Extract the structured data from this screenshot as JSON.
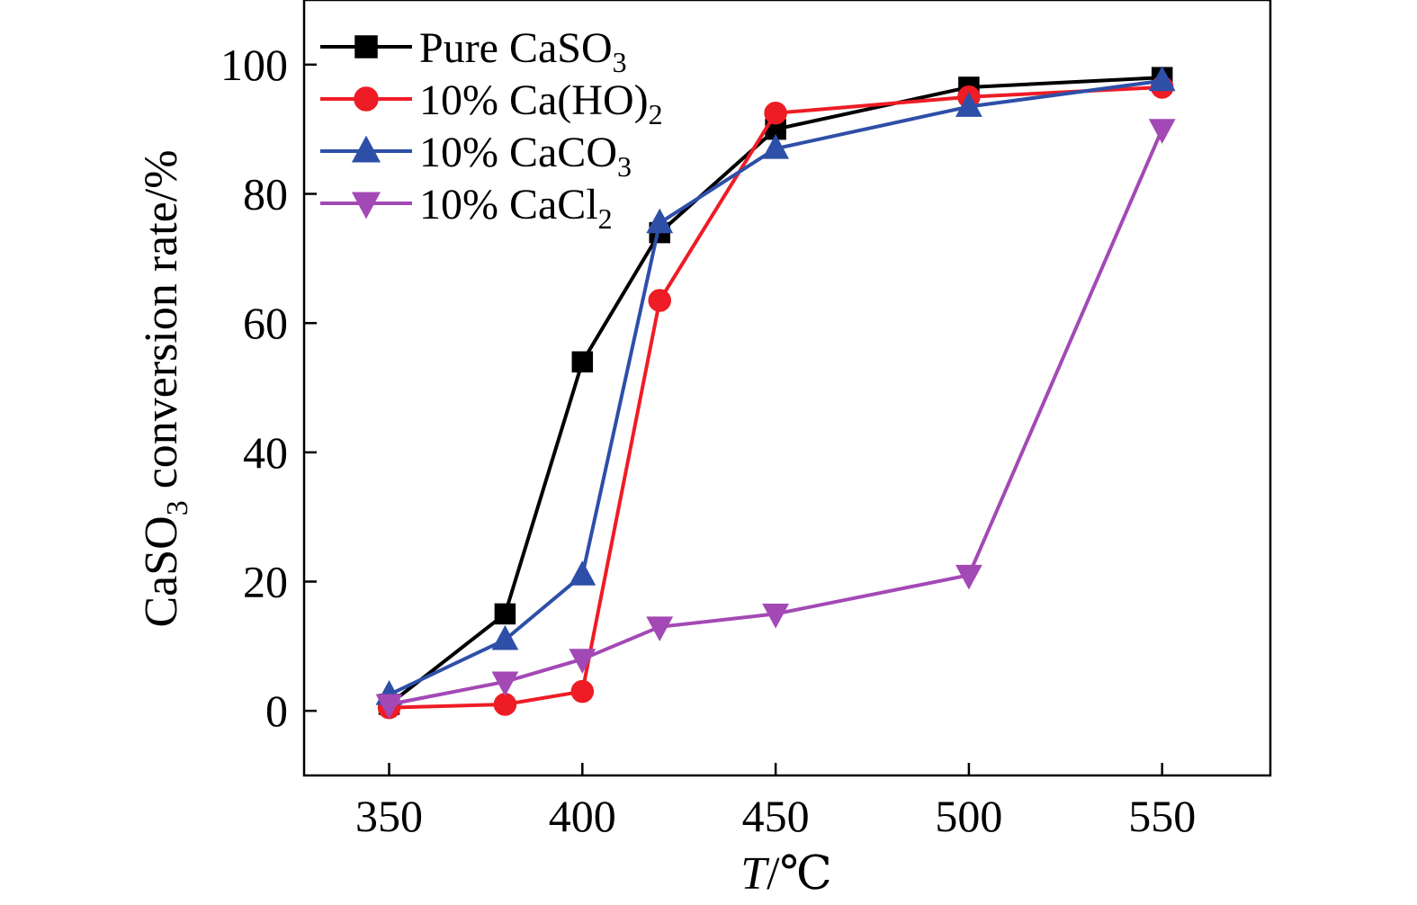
{
  "chart_data": {
    "type": "line",
    "x": [
      350,
      380,
      400,
      420,
      450,
      500,
      550
    ],
    "xlim": [
      328,
      578
    ],
    "ylim": [
      -10,
      110
    ],
    "xticks": [
      350,
      400,
      450,
      500,
      550
    ],
    "yticks": [
      0,
      20,
      40,
      60,
      80,
      100
    ],
    "xlabel": {
      "var": "T",
      "unit": "/℃"
    },
    "ylabel": {
      "pre": "CaSO",
      "sub": "3",
      "post": " conversion rate/%"
    },
    "legend_position": "top-left",
    "grid": false,
    "series": [
      {
        "name": {
          "pre": "Pure CaSO",
          "sub": "3",
          "post": ""
        },
        "color": "#000000",
        "marker": "square",
        "values": [
          1,
          15,
          54,
          74,
          90,
          96.5,
          98
        ]
      },
      {
        "name": {
          "pre": "10% Ca(HO)",
          "sub": "2",
          "post": ""
        },
        "color": "#ee1c25",
        "marker": "circle",
        "values": [
          0.5,
          1,
          3,
          63.5,
          92.5,
          95,
          96.5
        ]
      },
      {
        "name": {
          "pre": "10% CaCO",
          "sub": "3",
          "post": ""
        },
        "color": "#2e4fa8",
        "marker": "triangle-up",
        "values": [
          2.5,
          11,
          21,
          75.5,
          87,
          93.5,
          97.5
        ]
      },
      {
        "name": {
          "pre": "10% CaCl",
          "sub": "2",
          "post": ""
        },
        "color": "#a349b5",
        "marker": "triangle-down",
        "values": [
          1,
          4.5,
          8,
          13,
          15,
          21,
          90
        ]
      }
    ]
  }
}
